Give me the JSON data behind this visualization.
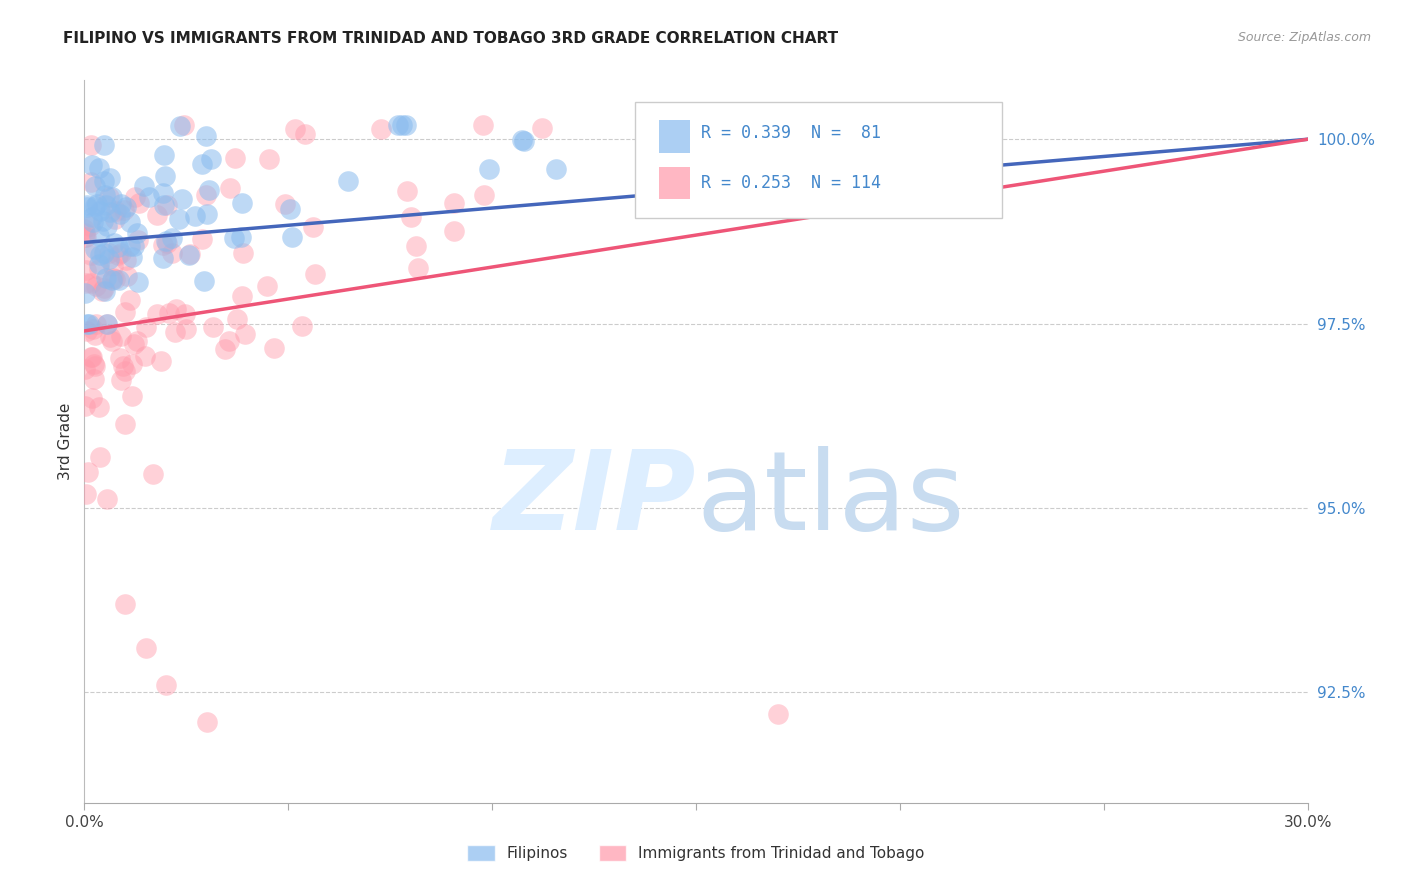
{
  "title": "FILIPINO VS IMMIGRANTS FROM TRINIDAD AND TOBAGO 3RD GRADE CORRELATION CHART",
  "source": "Source: ZipAtlas.com",
  "ylabel": "3rd Grade",
  "ytick_labels": [
    "92.5%",
    "95.0%",
    "97.5%",
    "100.0%"
  ],
  "ytick_values": [
    0.925,
    0.95,
    0.975,
    1.0
  ],
  "xlim": [
    0.0,
    0.3
  ],
  "ylim": [
    0.91,
    1.008
  ],
  "blue_R": 0.339,
  "blue_N": 81,
  "pink_R": 0.253,
  "pink_N": 114,
  "blue_color": "#89BBEE",
  "pink_color": "#FF99AA",
  "blue_line_color": "#4466BB",
  "pink_line_color": "#EE5577",
  "legend_label_blue": "Filipinos",
  "legend_label_pink": "Immigrants from Trinidad and Tobago",
  "blue_seed": 7,
  "pink_seed": 13
}
